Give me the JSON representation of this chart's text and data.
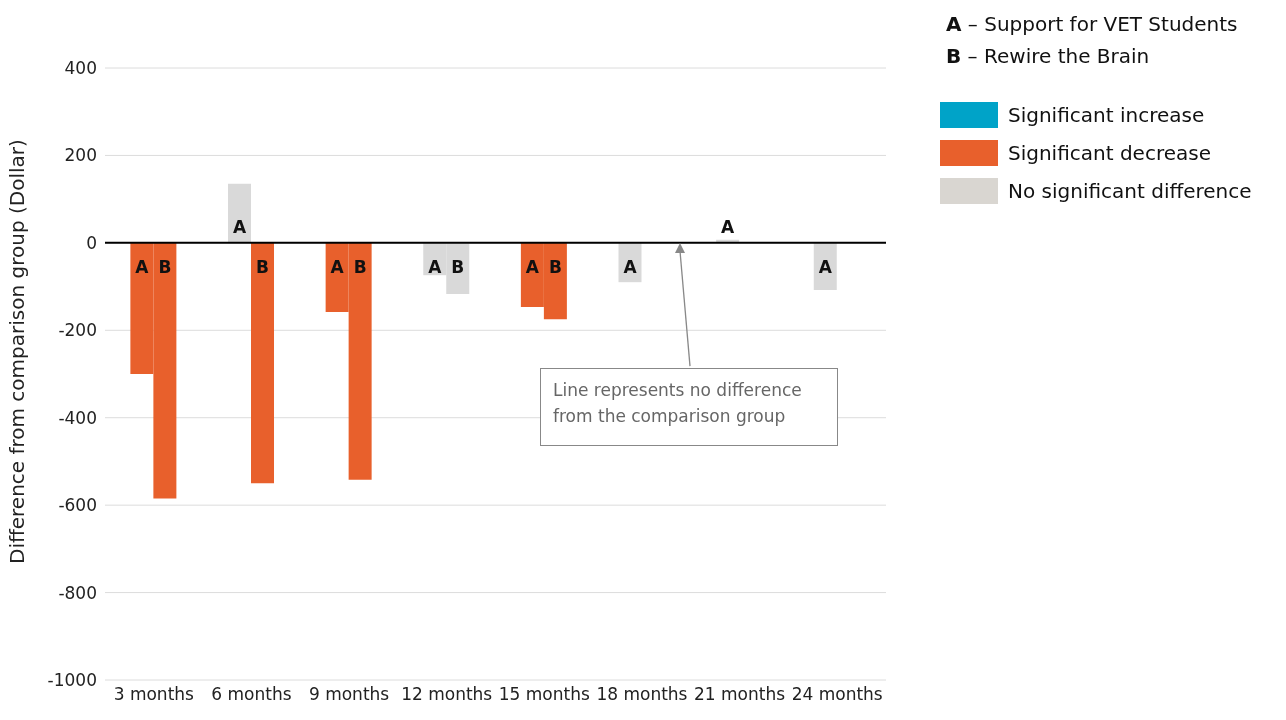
{
  "chart_data": {
    "type": "bar",
    "ylabel": "Difference from comparison group (Dollar)",
    "categories": [
      "3 months",
      "6 months",
      "9 months",
      "12 months",
      "15 months",
      "18 months",
      "21 months",
      "24 months"
    ],
    "series": [
      {
        "name": "A",
        "values": [
          -300,
          135,
          -158,
          -74,
          -147,
          -90,
          7,
          -108
        ],
        "colors": [
          "#e8602c",
          "#d9d9d9",
          "#e8602c",
          "#d9d9d9",
          "#e8602c",
          "#d9d9d9",
          "#d9d9d9",
          "#d9d9d9"
        ]
      },
      {
        "name": "B",
        "values": [
          -585,
          -550,
          -542,
          -117,
          -175,
          null,
          null,
          null
        ],
        "colors": [
          "#e8602c",
          "#e8602c",
          "#e8602c",
          "#d9d9d9",
          "#e8602c",
          null,
          null,
          null
        ]
      }
    ],
    "ylim": [
      -1000,
      400
    ],
    "yticks": [
      -1000,
      -800,
      -600,
      -400,
      -200,
      0,
      200,
      400
    ],
    "grid": "y",
    "ref_lines": [
      {
        "axis": "y",
        "value": 0,
        "color": "#000000"
      }
    ],
    "annotations": [
      {
        "text": "Line represents no difference from the comparison group",
        "y": 0
      },
      "A – Support for VET Students",
      "B – Rewire the Brain",
      "Significant increase",
      "Significant decrease",
      "No significant difference"
    ]
  }
}
